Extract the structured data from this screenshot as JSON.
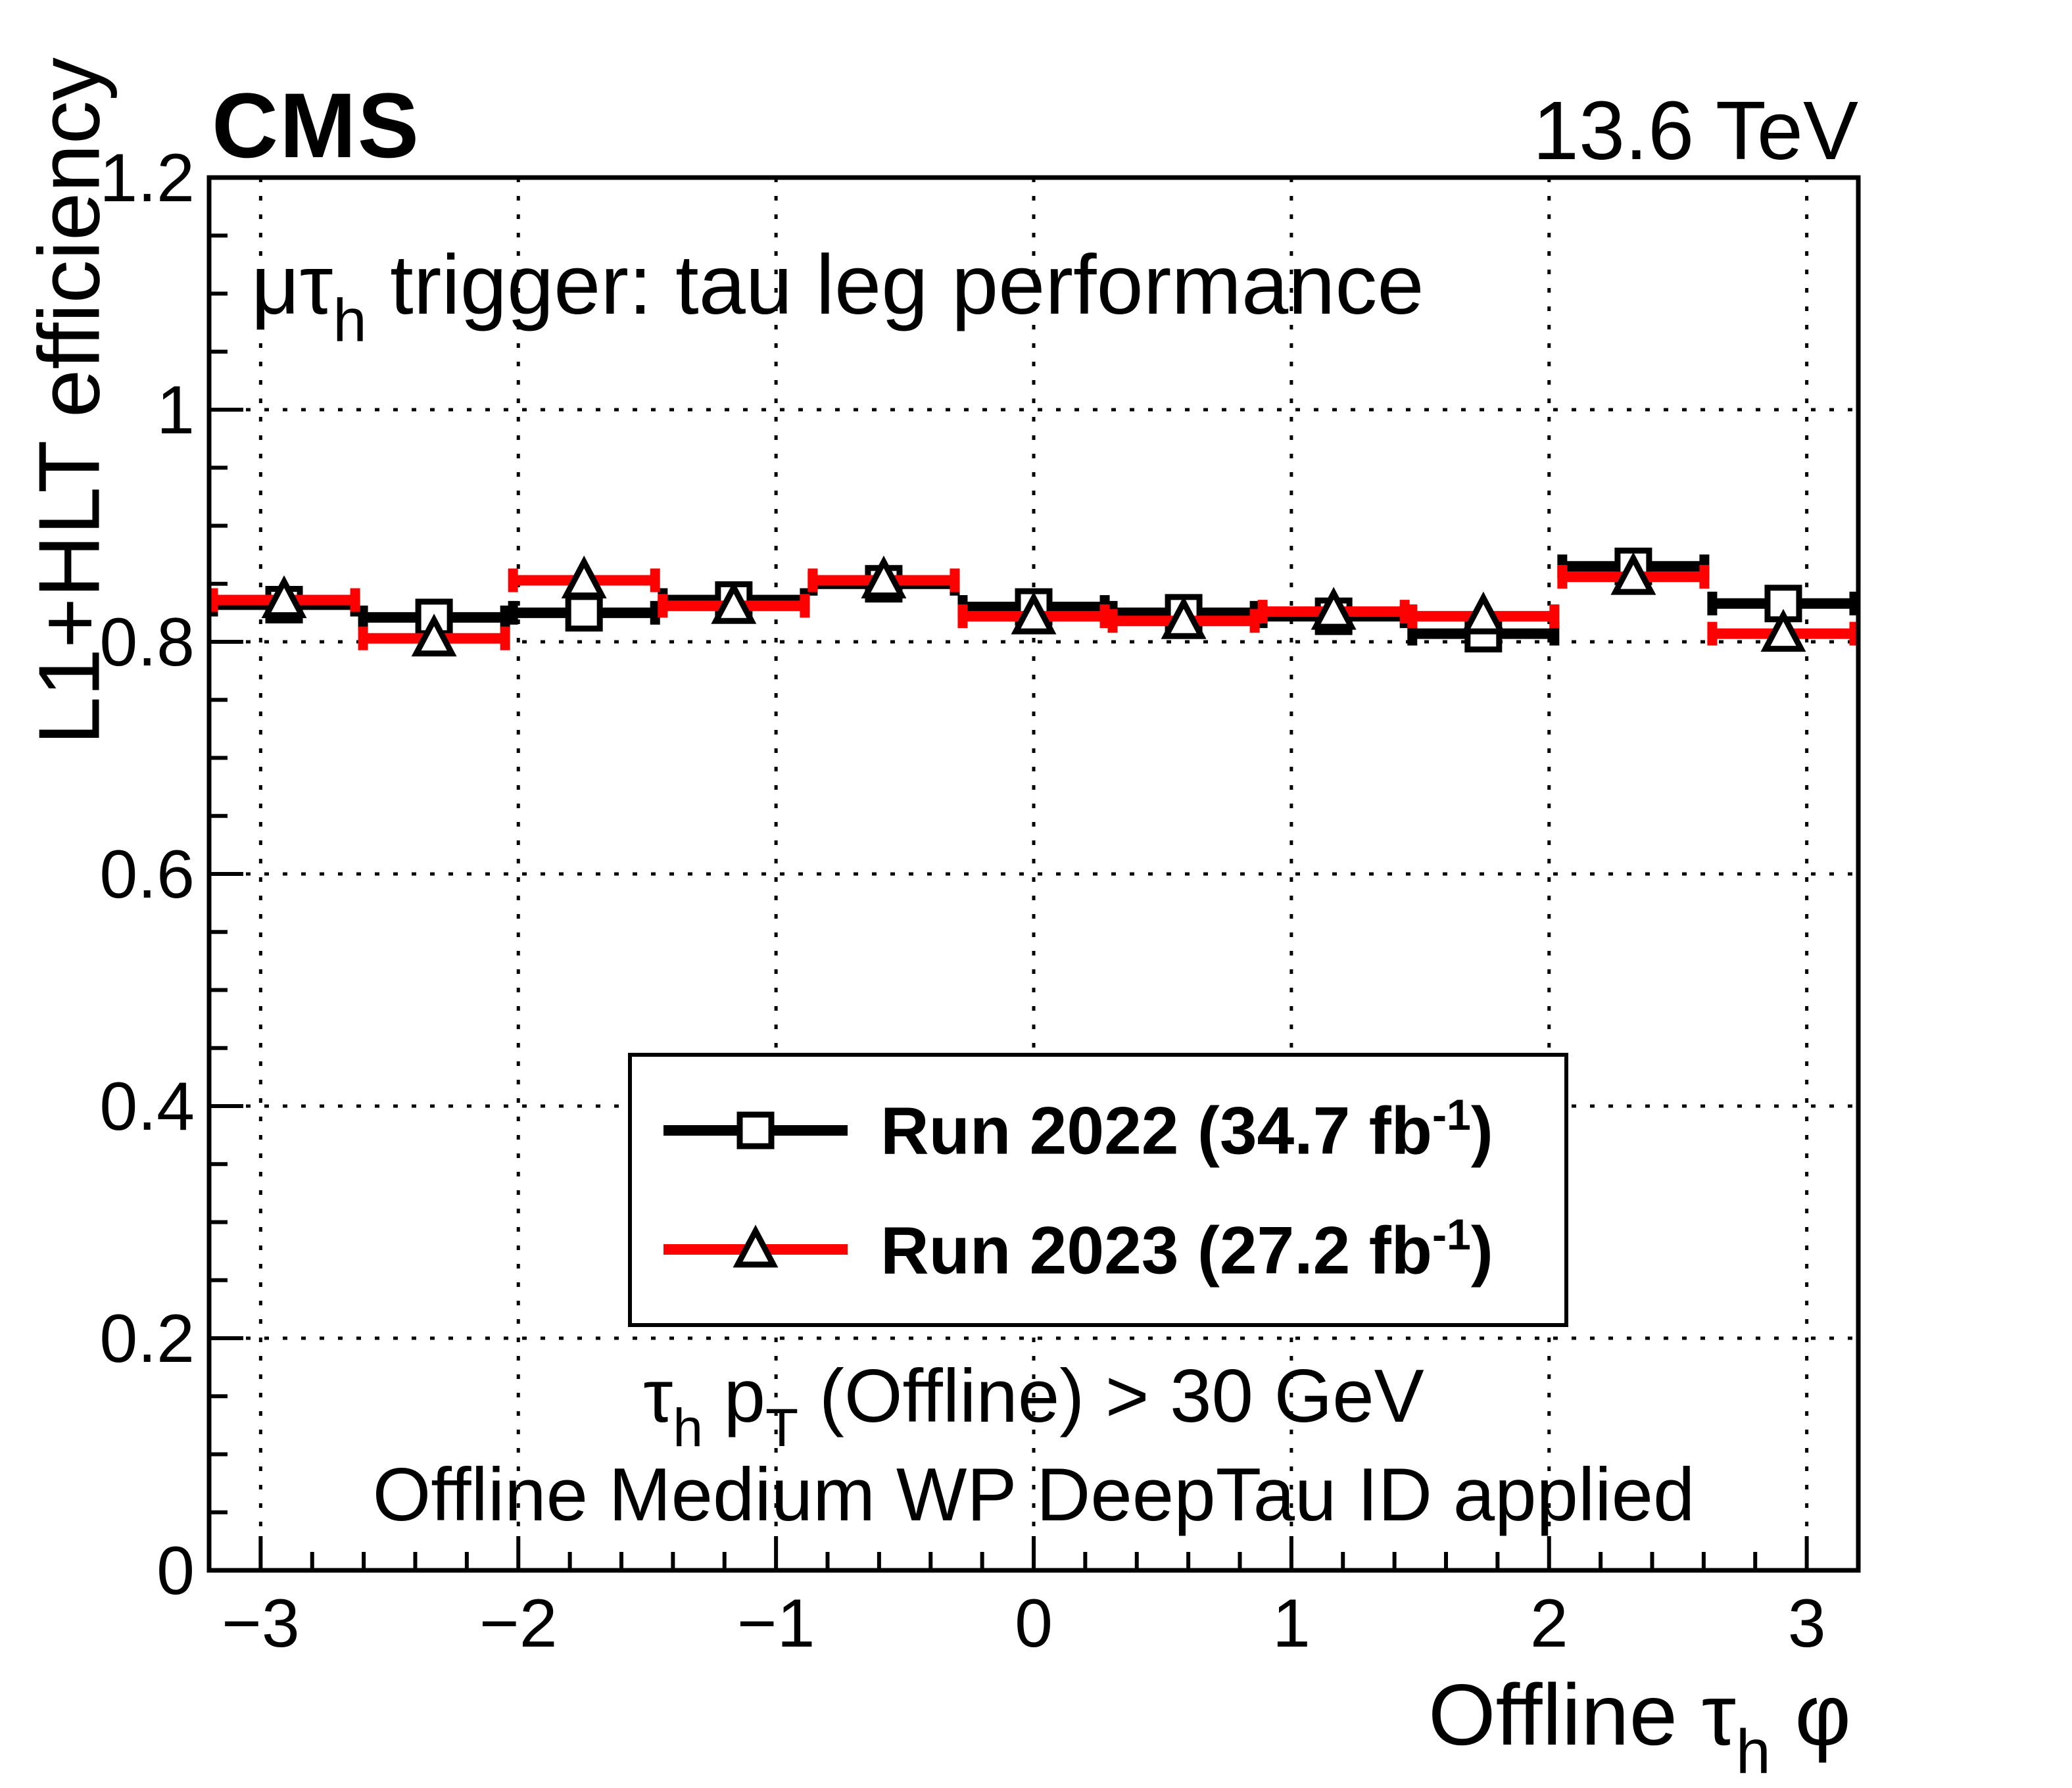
{
  "header": {
    "experiment": "CMS",
    "energy": "13.6 TeV"
  },
  "plot": {
    "title": {
      "pre": "μτ",
      "sub": "h",
      "post": " trigger: tau leg performance"
    },
    "ylabel": "L1+HLT efficiency",
    "xlabel": {
      "pre": "Offline τ",
      "sub": "h",
      "post": " φ"
    },
    "cut1": {
      "p1": "τ",
      "s1": "h",
      "p2": " p",
      "s2": "T",
      "p3": " (Offline) > 30 GeV"
    },
    "cut2": "Offline Medium WP DeepTau ID applied"
  },
  "legend": {
    "entries": [
      {
        "label_pre": "Run 2022 (34.7 fb",
        "label_sup": "-1",
        "label_post": ")",
        "color": "#000000",
        "marker": "open-square"
      },
      {
        "label_pre": "Run 2023 (27.2 fb",
        "label_sup": "-1",
        "label_post": ")",
        "color": "#ff0000",
        "marker": "open-triangle"
      }
    ]
  },
  "chart_data": {
    "type": "scatter",
    "title": "μτh trigger: tau leg performance",
    "xlabel": "Offline τh φ",
    "ylabel": "L1+HLT efficiency",
    "xlim": [
      -3.2,
      3.2
    ],
    "ylim": [
      0,
      1.2
    ],
    "grid": "dotted at major ticks, both axes",
    "legend_position": "bottom-center-inside",
    "x_ticks": [
      {
        "v": -3,
        "label": "−3"
      },
      {
        "v": -2,
        "label": "−2"
      },
      {
        "v": -1,
        "label": "−1"
      },
      {
        "v": 0,
        "label": "0"
      },
      {
        "v": 1,
        "label": "1"
      },
      {
        "v": 2,
        "label": "2"
      },
      {
        "v": 3,
        "label": "3"
      }
    ],
    "y_ticks": [
      {
        "v": 1.2,
        "label": "1.2"
      },
      {
        "v": 1.0,
        "label": "1"
      },
      {
        "v": 0.8,
        "label": "0.8"
      },
      {
        "v": 0.6,
        "label": "0.6"
      },
      {
        "v": 0.4,
        "label": "0.4"
      },
      {
        "v": 0.2,
        "label": "0.2"
      },
      {
        "v": 0,
        "label": "0"
      }
    ],
    "x_minor_step": 0.2,
    "y_minor_step": 0.05,
    "bin_half_width": 0.291,
    "x": [
      -2.909,
      -2.327,
      -1.745,
      -1.164,
      -0.582,
      0.0,
      0.582,
      1.164,
      1.745,
      2.327,
      2.909
    ],
    "series": [
      {
        "name": "Run 2022 (34.7 fb-1)",
        "color": "#000000",
        "marker": "open-square",
        "values": [
          0.832,
          0.821,
          0.825,
          0.836,
          0.85,
          0.83,
          0.825,
          0.822,
          0.807,
          0.865,
          0.833
        ]
      },
      {
        "name": "Run 2023 (27.2 fb-1)",
        "color": "#ff0000",
        "marker": "open-triangle",
        "values": [
          0.836,
          0.803,
          0.853,
          0.831,
          0.853,
          0.822,
          0.818,
          0.826,
          0.822,
          0.856,
          0.807
        ]
      }
    ],
    "annotations": [
      "τh pT (Offline) > 30 GeV",
      "Offline Medium WP DeepTau ID applied"
    ]
  }
}
